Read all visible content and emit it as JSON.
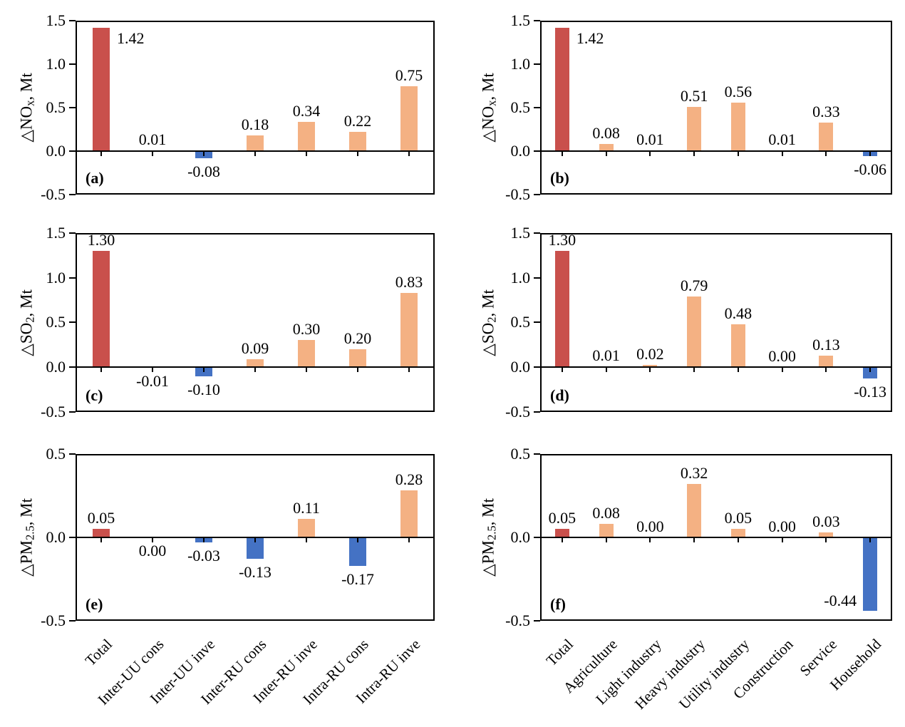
{
  "figure": {
    "description": "Six-panel bar chart figure of emission changes by flow type and by sector",
    "unit": "Mt",
    "colors": {
      "total_bar": "#C9504C",
      "positive_bar": "#F4B183",
      "negative_bar": "#4472C4",
      "axis": "#000000",
      "background": "#FFFFFF"
    }
  },
  "chart_data": {
    "type": "bar",
    "grid": "off",
    "legend": "none",
    "left_categories": [
      "Total",
      "Inter-UU cons",
      "Inter-UU inve",
      "Inter-RU cons",
      "Inter-RU inve",
      "Intra-RU cons",
      "Intra-RU inve"
    ],
    "right_categories": [
      "Total",
      "Agriculture",
      "Light industry",
      "Heavy industry",
      "Utility industry",
      "Construction",
      "Service",
      "Household"
    ],
    "panels": [
      {
        "panel_label": "(a)",
        "pollutant": "NOx",
        "side": "left",
        "ylabel": {
          "pre": "△NO",
          "sub": "x",
          "post": ", Mt"
        },
        "ylim": [
          -0.5,
          1.5
        ],
        "yticks": [
          1.5,
          1.0,
          0.5,
          0.0,
          -0.5
        ],
        "ytick_labels": [
          "1.5",
          "1.0",
          "0.5",
          "0.0",
          "-0.5"
        ],
        "values": [
          1.42,
          0.01,
          -0.08,
          0.18,
          0.34,
          0.22,
          0.75
        ],
        "value_labels": [
          "1.42",
          "0.01",
          "-0.08",
          "0.18",
          "0.34",
          "0.22",
          "0.75"
        ]
      },
      {
        "panel_label": "(b)",
        "pollutant": "NOx",
        "side": "right",
        "ylabel": {
          "pre": "△NO",
          "sub": "x",
          "post": ", Mt"
        },
        "ylim": [
          -0.5,
          1.5
        ],
        "yticks": [
          1.5,
          1.0,
          0.5,
          0.0,
          -0.5
        ],
        "ytick_labels": [
          "1.5",
          "1.0",
          "0.5",
          "0.0",
          "-0.5"
        ],
        "values": [
          1.42,
          0.08,
          0.01,
          0.51,
          0.56,
          0.01,
          0.33,
          -0.06
        ],
        "value_labels": [
          "1.42",
          "0.08",
          "0.01",
          "0.51",
          "0.56",
          "0.01",
          "0.33",
          "-0.06"
        ]
      },
      {
        "panel_label": "(c)",
        "pollutant": "SO2",
        "side": "left",
        "ylabel": {
          "pre": "△SO",
          "sub": "2",
          "post": ", Mt"
        },
        "ylim": [
          -0.5,
          1.5
        ],
        "yticks": [
          1.5,
          1.0,
          0.5,
          0.0,
          -0.5
        ],
        "ytick_labels": [
          "1.5",
          "1.0",
          "0.5",
          "0.0",
          "-0.5"
        ],
        "values": [
          1.3,
          -0.01,
          -0.1,
          0.09,
          0.3,
          0.2,
          0.83
        ],
        "value_labels": [
          "1.30",
          "-0.01",
          "-0.10",
          "0.09",
          "0.30",
          "0.20",
          "0.83"
        ]
      },
      {
        "panel_label": "(d)",
        "pollutant": "SO2",
        "side": "right",
        "ylabel": {
          "pre": "△SO",
          "sub": "2",
          "post": ", Mt"
        },
        "ylim": [
          -0.5,
          1.5
        ],
        "yticks": [
          1.5,
          1.0,
          0.5,
          0.0,
          -0.5
        ],
        "ytick_labels": [
          "1.5",
          "1.0",
          "0.5",
          "0.0",
          "-0.5"
        ],
        "values": [
          1.3,
          0.01,
          0.02,
          0.79,
          0.48,
          0.0,
          0.13,
          -0.13
        ],
        "value_labels": [
          "1.30",
          "0.01",
          "0.02",
          "0.79",
          "0.48",
          "0.00",
          "0.13",
          "-0.13"
        ]
      },
      {
        "panel_label": "(e)",
        "pollutant": "PM2.5",
        "side": "left",
        "ylabel": {
          "pre": "△PM",
          "sub": "2.5",
          "post": ", Mt"
        },
        "ylim": [
          -0.5,
          0.5
        ],
        "yticks": [
          0.5,
          0.0,
          -0.5
        ],
        "ytick_labels": [
          "0.5",
          "0.0",
          "-0.5"
        ],
        "values": [
          0.05,
          0.0,
          -0.03,
          -0.13,
          0.11,
          -0.17,
          0.28
        ],
        "value_labels": [
          "0.05",
          "0.00",
          "-0.03",
          "-0.13",
          "0.11",
          "-0.17",
          "0.28"
        ],
        "labels_below_axis_indices": [
          1
        ]
      },
      {
        "panel_label": "(f)",
        "pollutant": "PM2.5",
        "side": "right",
        "ylabel": {
          "pre": "△PM",
          "sub": "2.5",
          "post": ", Mt"
        },
        "ylim": [
          -0.5,
          0.5
        ],
        "yticks": [
          0.5,
          0.0,
          -0.5
        ],
        "ytick_labels": [
          "0.5",
          "0.0",
          "-0.5"
        ],
        "values": [
          0.05,
          0.08,
          0.0,
          0.32,
          0.05,
          0.0,
          0.03,
          -0.44
        ],
        "value_labels": [
          "0.05",
          "0.08",
          "0.00",
          "0.32",
          "0.05",
          "0.00",
          "0.03",
          "-0.44"
        ]
      }
    ]
  }
}
